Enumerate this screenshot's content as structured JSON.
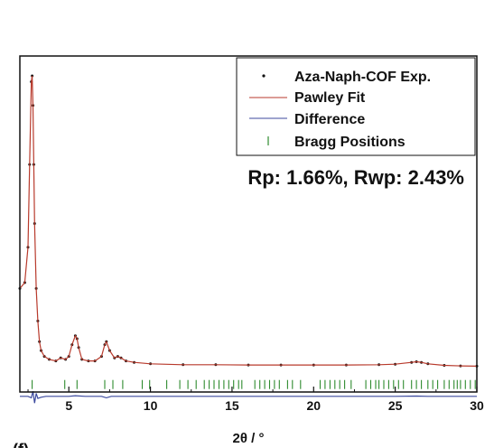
{
  "chart_data": {
    "type": "line",
    "xlabel": "2θ / °",
    "ylabel": "",
    "xlim": [
      2,
      30
    ],
    "ylim": [
      -0.12,
      1.1
    ],
    "xticks": [
      5,
      10,
      15,
      20,
      25,
      30
    ],
    "grid": false,
    "legend_placement": "top-right",
    "annotation": "Rp: 1.66%, Rwp: 2.43%",
    "panel_label": "(f)",
    "series": [
      {
        "name": "Aza-Naph-COF Exp.",
        "style": "dots",
        "color": "#111111",
        "x": [
          2.0,
          2.3,
          2.5,
          2.6,
          2.7,
          2.75,
          2.8,
          2.85,
          2.9,
          3.0,
          3.1,
          3.2,
          3.3,
          3.5,
          3.8,
          4.2,
          4.5,
          4.8,
          5.0,
          5.2,
          5.4,
          5.5,
          5.6,
          5.8,
          6.2,
          6.6,
          7.0,
          7.2,
          7.3,
          7.5,
          7.8,
          8.0,
          8.2,
          8.5,
          9,
          10,
          12,
          14,
          16,
          18,
          20,
          22,
          24,
          25,
          26,
          26.3,
          26.6,
          27,
          28,
          29,
          30
        ],
        "y": [
          0.28,
          0.3,
          0.42,
          0.7,
          0.98,
          1.0,
          0.9,
          0.7,
          0.5,
          0.28,
          0.17,
          0.1,
          0.07,
          0.05,
          0.04,
          0.035,
          0.045,
          0.04,
          0.05,
          0.09,
          0.12,
          0.11,
          0.08,
          0.04,
          0.035,
          0.035,
          0.05,
          0.09,
          0.1,
          0.07,
          0.045,
          0.05,
          0.045,
          0.035,
          0.03,
          0.025,
          0.022,
          0.022,
          0.021,
          0.021,
          0.021,
          0.021,
          0.022,
          0.024,
          0.03,
          0.032,
          0.03,
          0.025,
          0.02,
          0.018,
          0.017
        ]
      },
      {
        "name": "Pawley Fit",
        "style": "line",
        "color": "#b83a2c",
        "x": [
          2.0,
          2.3,
          2.5,
          2.6,
          2.7,
          2.75,
          2.8,
          2.85,
          2.9,
          3.0,
          3.1,
          3.2,
          3.3,
          3.5,
          3.8,
          4.2,
          4.5,
          4.8,
          5.0,
          5.2,
          5.4,
          5.5,
          5.6,
          5.8,
          6.2,
          6.6,
          7.0,
          7.2,
          7.3,
          7.5,
          7.8,
          8.0,
          8.2,
          8.5,
          9,
          10,
          12,
          14,
          16,
          18,
          20,
          22,
          24,
          25,
          26,
          26.3,
          26.6,
          27,
          28,
          29,
          30
        ],
        "y": [
          0.28,
          0.3,
          0.42,
          0.7,
          0.98,
          1.0,
          0.9,
          0.7,
          0.5,
          0.28,
          0.17,
          0.1,
          0.07,
          0.05,
          0.04,
          0.035,
          0.045,
          0.04,
          0.05,
          0.09,
          0.12,
          0.11,
          0.08,
          0.04,
          0.035,
          0.035,
          0.05,
          0.09,
          0.1,
          0.07,
          0.045,
          0.05,
          0.045,
          0.035,
          0.03,
          0.025,
          0.022,
          0.022,
          0.021,
          0.021,
          0.021,
          0.021,
          0.022,
          0.024,
          0.03,
          0.032,
          0.03,
          0.025,
          0.02,
          0.018,
          0.017
        ]
      },
      {
        "name": "Difference",
        "style": "line",
        "color": "#3c4a9e",
        "x": [
          2.0,
          2.5,
          2.7,
          2.8,
          2.9,
          3.0,
          3.1,
          3.3,
          3.6,
          4.0,
          5.0,
          5.4,
          6.0,
          7.0,
          7.3,
          7.6,
          8.5,
          10,
          15,
          20,
          25,
          26.3,
          27,
          30
        ],
        "y": [
          -0.085,
          -0.085,
          -0.09,
          -0.068,
          -0.108,
          -0.075,
          -0.092,
          -0.088,
          -0.085,
          -0.085,
          -0.085,
          -0.083,
          -0.085,
          -0.085,
          -0.09,
          -0.085,
          -0.085,
          -0.085,
          -0.085,
          -0.085,
          -0.085,
          -0.084,
          -0.085,
          -0.085
        ]
      },
      {
        "name": "Bragg Positions",
        "style": "ticks",
        "color": "#2e8b2e",
        "y_level": -0.045,
        "x": [
          2.75,
          4.75,
          5.5,
          7.2,
          7.7,
          8.3,
          9.5,
          9.95,
          11.0,
          11.8,
          12.3,
          12.8,
          13.3,
          13.6,
          13.9,
          14.2,
          14.5,
          14.8,
          15.1,
          15.4,
          15.6,
          16.4,
          16.7,
          17.0,
          17.3,
          17.6,
          17.9,
          18.4,
          18.7,
          19.2,
          20.4,
          20.7,
          21.0,
          21.3,
          21.6,
          21.9,
          22.3,
          23.2,
          23.5,
          23.8,
          24.0,
          24.3,
          24.6,
          24.9,
          25.2,
          25.5,
          26.0,
          26.3,
          26.6,
          27.0,
          27.3,
          27.6,
          28.0,
          28.3,
          28.6,
          28.8,
          29.0,
          29.3,
          29.6,
          29.9
        ]
      }
    ]
  }
}
